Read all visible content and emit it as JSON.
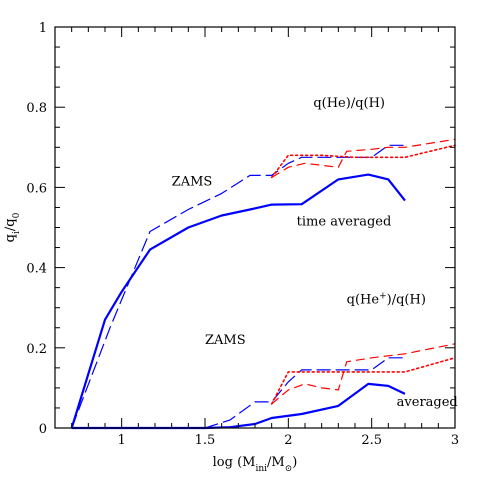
{
  "chart_data": {
    "type": "line",
    "xlim": [
      0.6,
      3.0
    ],
    "ylim": [
      0,
      1.0
    ],
    "xlabel": {
      "base": "log (M",
      "sub1": "ini",
      "mid": "/M",
      "sub2": "⊙",
      "end": ")"
    },
    "ylabel": {
      "base": "q",
      "sub1": "i",
      "mid": "/q",
      "sub2": "0"
    },
    "x_ticks": [
      {
        "value": 1,
        "label": "1"
      },
      {
        "value": 1.5,
        "label": "1.5"
      },
      {
        "value": 2,
        "label": "2"
      },
      {
        "value": 2.5,
        "label": "2.5"
      },
      {
        "value": 3,
        "label": "3"
      }
    ],
    "y_ticks": [
      {
        "value": 0,
        "label": "0"
      },
      {
        "value": 0.2,
        "label": "0.2"
      },
      {
        "value": 0.4,
        "label": "0.4"
      },
      {
        "value": 0.6,
        "label": "0.6"
      },
      {
        "value": 0.8,
        "label": "0.8"
      },
      {
        "value": 1,
        "label": "1"
      }
    ],
    "annotations": [
      {
        "name": "label-qhe-qh",
        "x": 2.15,
        "y": 0.8,
        "parts": [
          {
            "t": "q(He)/q(H)"
          }
        ]
      },
      {
        "name": "label-zams-upper",
        "x": 1.3,
        "y": 0.605,
        "parts": [
          {
            "t": "ZAMS"
          }
        ]
      },
      {
        "name": "label-time-averaged",
        "x": 2.05,
        "y": 0.505,
        "parts": [
          {
            "t": "time averaged"
          }
        ]
      },
      {
        "name": "label-qhe-plus-qh",
        "x": 2.35,
        "y": 0.31,
        "parts": [
          {
            "t": "q(He"
          },
          {
            "t": "+",
            "sup": true
          },
          {
            "t": ")/q(H)"
          }
        ]
      },
      {
        "name": "label-zams-lower",
        "x": 1.5,
        "y": 0.21,
        "parts": [
          {
            "t": "ZAMS"
          }
        ]
      },
      {
        "name": "label-averaged",
        "x": 2.65,
        "y": 0.055,
        "parts": [
          {
            "t": "averaged"
          }
        ]
      }
    ],
    "series": [
      {
        "color": "#0000ff",
        "style": "solid",
        "width": 2.2,
        "x": [
          0.7,
          0.9,
          1.0,
          1.17,
          1.4,
          1.6,
          1.77,
          1.9,
          2.08,
          2.3,
          2.48,
          2.6,
          2.7
        ],
        "y": [
          0.0,
          0.27,
          0.34,
          0.445,
          0.5,
          0.53,
          0.545,
          0.557,
          0.558,
          0.62,
          0.632,
          0.62,
          0.567
        ]
      },
      {
        "color": "#0000ff",
        "style": "longdash",
        "width": 1.2,
        "x": [
          0.7,
          0.93,
          1.17,
          1.4,
          1.6,
          1.77,
          1.9,
          2.0,
          2.08,
          2.2,
          2.3,
          2.5,
          2.6,
          2.7
        ],
        "y": [
          0.0,
          0.25,
          0.49,
          0.545,
          0.585,
          0.63,
          0.63,
          0.66,
          0.675,
          0.675,
          0.675,
          0.675,
          0.705,
          0.705
        ]
      },
      {
        "color": "#ff0000",
        "style": "dash",
        "width": 1.2,
        "x": [
          1.9,
          2.0,
          2.1,
          2.2,
          2.3,
          2.35,
          2.5,
          2.6,
          2.7,
          3.0
        ],
        "y": [
          0.625,
          0.65,
          0.66,
          0.655,
          0.65,
          0.69,
          0.695,
          0.7,
          0.7,
          0.72
        ]
      },
      {
        "color": "#ff0000",
        "style": "dot",
        "width": 1.6,
        "x": [
          1.9,
          2.0,
          2.2,
          2.4,
          2.5,
          2.6,
          2.7,
          3.0
        ],
        "y": [
          0.625,
          0.68,
          0.68,
          0.675,
          0.675,
          0.675,
          0.675,
          0.705
        ]
      },
      {
        "color": "#0000ff",
        "style": "solid",
        "width": 2.2,
        "x": [
          0.7,
          1.0,
          1.5,
          1.65,
          1.8,
          1.9,
          2.08,
          2.3,
          2.48,
          2.6,
          2.7
        ],
        "y": [
          0.0,
          0.0,
          0.0,
          0.002,
          0.01,
          0.025,
          0.035,
          0.055,
          0.11,
          0.105,
          0.085
        ]
      },
      {
        "color": "#0000ff",
        "style": "longdash",
        "width": 1.2,
        "x": [
          0.7,
          1.5,
          1.65,
          1.8,
          1.9,
          2.0,
          2.08,
          2.2,
          2.3,
          2.5,
          2.6,
          2.7
        ],
        "y": [
          0.0,
          0.0,
          0.02,
          0.065,
          0.065,
          0.115,
          0.145,
          0.145,
          0.145,
          0.145,
          0.175,
          0.175
        ]
      },
      {
        "color": "#ff0000",
        "style": "dash",
        "width": 1.2,
        "x": [
          1.9,
          2.0,
          2.1,
          2.2,
          2.3,
          2.35,
          2.5,
          2.6,
          2.7,
          3.0
        ],
        "y": [
          0.06,
          0.095,
          0.11,
          0.1,
          0.095,
          0.165,
          0.175,
          0.18,
          0.185,
          0.21
        ]
      },
      {
        "color": "#ff0000",
        "style": "dot",
        "width": 1.6,
        "x": [
          1.9,
          2.0,
          2.2,
          2.4,
          2.5,
          2.6,
          2.7,
          3.0
        ],
        "y": [
          0.06,
          0.14,
          0.14,
          0.14,
          0.14,
          0.14,
          0.14,
          0.175
        ]
      }
    ]
  }
}
